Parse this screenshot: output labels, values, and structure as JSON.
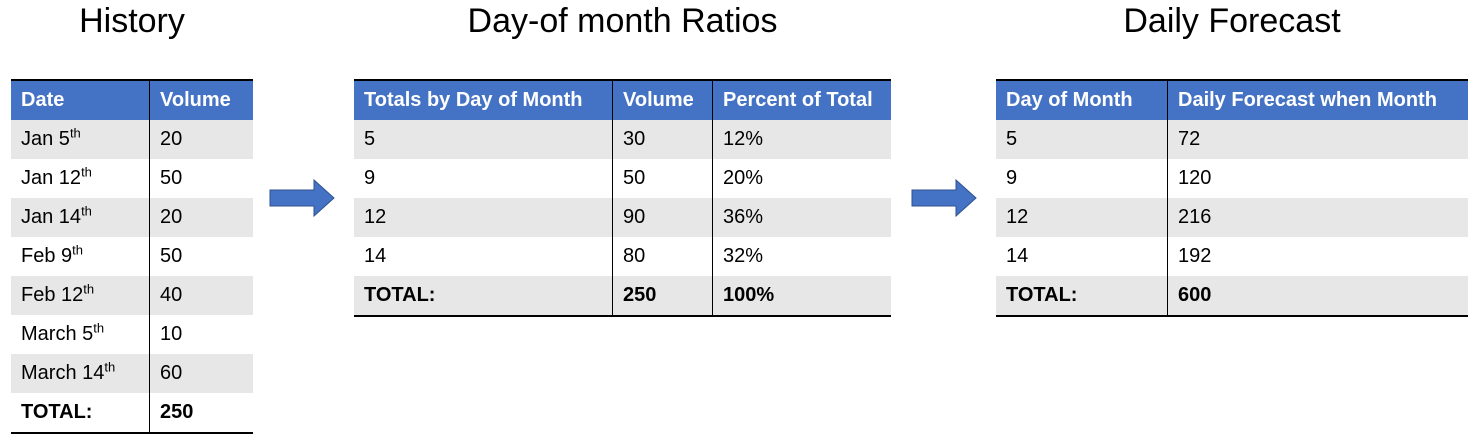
{
  "history": {
    "title": "History",
    "columns": [
      "Date",
      "Volume"
    ],
    "rows": [
      [
        {
          "text": "Jan 5",
          "sup": "th"
        },
        20
      ],
      [
        {
          "text": "Jan 12",
          "sup": "th"
        },
        50
      ],
      [
        {
          "text": "Jan 14",
          "sup": "th"
        },
        20
      ],
      [
        {
          "text": "Feb 9",
          "sup": "th"
        },
        50
      ],
      [
        {
          "text": "Feb 12",
          "sup": "th"
        },
        40
      ],
      [
        {
          "text": "March 5",
          "sup": "th"
        },
        10
      ],
      [
        {
          "text": "March 14",
          "sup": "th"
        },
        60
      ]
    ],
    "total": [
      "TOTAL:",
      250
    ]
  },
  "ratios": {
    "title": "Day-of month Ratios",
    "columns": [
      "Totals by Day of Month",
      "Volume",
      "Percent of Total"
    ],
    "rows": [
      [
        5,
        30,
        "12%"
      ],
      [
        9,
        50,
        "20%"
      ],
      [
        12,
        90,
        "36%"
      ],
      [
        14,
        80,
        "32%"
      ]
    ],
    "total": [
      "TOTAL:",
      250,
      "100%"
    ]
  },
  "forecast": {
    "title": "Daily Forecast",
    "columns": [
      "Day of Month",
      "Daily Forecast when Month"
    ],
    "rows": [
      [
        5,
        72
      ],
      [
        9,
        120
      ],
      [
        12,
        216
      ],
      [
        14,
        192
      ]
    ],
    "total": [
      "TOTAL:",
      600
    ]
  }
}
